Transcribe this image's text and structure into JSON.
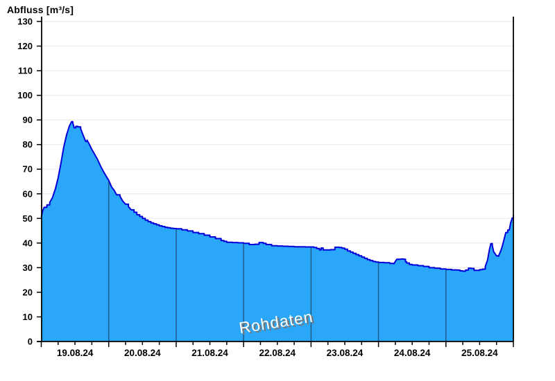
{
  "chart_data": {
    "type": "area",
    "title": "Abfluss [m³/s]",
    "ylabel": "Abfluss [m³/s]",
    "xlabel": "",
    "watermark": "Rohdaten",
    "legend": "none",
    "grid": "horizontal",
    "ylim": [
      0,
      130
    ],
    "y_ticks": [
      0,
      10,
      20,
      30,
      40,
      50,
      60,
      70,
      80,
      90,
      100,
      110,
      120,
      130
    ],
    "x_day_labels": [
      "19.08.24",
      "20.08.24",
      "21.08.24",
      "22.08.24",
      "23.08.24",
      "24.08.24",
      "25.08.24"
    ],
    "x_span_hours": 168,
    "hours_per_day": 24,
    "minor_tick_hours": 6,
    "day_boundary_hours": [
      24,
      48,
      72,
      96,
      120,
      144
    ],
    "series": [
      {
        "name": "Abfluss Rohdaten",
        "unit": "m³/s",
        "points": [
          [
            0,
            50.5
          ],
          [
            0.5,
            53
          ],
          [
            1,
            54.5
          ],
          [
            2,
            55.5
          ],
          [
            3,
            56.5
          ],
          [
            4,
            58.5
          ],
          [
            5,
            62
          ],
          [
            6,
            66.5
          ],
          [
            7,
            72.5
          ],
          [
            8,
            79
          ],
          [
            9,
            84
          ],
          [
            10,
            87.5
          ],
          [
            10.8,
            89.3
          ],
          [
            11.2,
            88.8
          ],
          [
            11.7,
            86.8
          ],
          [
            12.3,
            87.4
          ],
          [
            13,
            87.2
          ],
          [
            14,
            86.5
          ],
          [
            15,
            83.5
          ],
          [
            15.8,
            81.3
          ],
          [
            16.3,
            81.8
          ],
          [
            17,
            80.3
          ],
          [
            18,
            78
          ],
          [
            19,
            76
          ],
          [
            20,
            74
          ],
          [
            21,
            71.5
          ],
          [
            22,
            69.3
          ],
          [
            23,
            67.3
          ],
          [
            24,
            65.5
          ],
          [
            25,
            62.8
          ],
          [
            26,
            61.3
          ],
          [
            26.8,
            59.6
          ],
          [
            28,
            59
          ],
          [
            29,
            57
          ],
          [
            30,
            55.8
          ],
          [
            31,
            54.8
          ],
          [
            32,
            53.5
          ],
          [
            33,
            52.5
          ],
          [
            34,
            51.5
          ],
          [
            35,
            50.8
          ],
          [
            36,
            50
          ],
          [
            37,
            49.3
          ],
          [
            38,
            48.7
          ],
          [
            39,
            48.2
          ],
          [
            40,
            47.8
          ],
          [
            41,
            47.4
          ],
          [
            42,
            47
          ],
          [
            43,
            46.7
          ],
          [
            44,
            46.4
          ],
          [
            45,
            46.2
          ],
          [
            46,
            46
          ],
          [
            47,
            45.9
          ],
          [
            48,
            45.8
          ],
          [
            50,
            45.4
          ],
          [
            52,
            44.9
          ],
          [
            54,
            44.3
          ],
          [
            56,
            43.8
          ],
          [
            58,
            43.2
          ],
          [
            60,
            42.5
          ],
          [
            62,
            41.8
          ],
          [
            64,
            41
          ],
          [
            65,
            40.7
          ],
          [
            66,
            40.3
          ],
          [
            68,
            40.2
          ],
          [
            70,
            40.1
          ],
          [
            72,
            39.9
          ],
          [
            74,
            39.4
          ],
          [
            76,
            39.5
          ],
          [
            77.5,
            40.2
          ],
          [
            79,
            39.9
          ],
          [
            80,
            39.4
          ],
          [
            82,
            38.9
          ],
          [
            84,
            38.8
          ],
          [
            86,
            38.7
          ],
          [
            88,
            38.6
          ],
          [
            90,
            38.5
          ],
          [
            92,
            38.5
          ],
          [
            94,
            38.4
          ],
          [
            96,
            38.4
          ],
          [
            97,
            38.2
          ],
          [
            98,
            37.8
          ],
          [
            99,
            37.2
          ],
          [
            99.6,
            38
          ],
          [
            100.3,
            37.2
          ],
          [
            102,
            37.2
          ],
          [
            103,
            37.3
          ],
          [
            104.5,
            38.3
          ],
          [
            106,
            38.2
          ],
          [
            107,
            37.9
          ],
          [
            108,
            37.5
          ],
          [
            109,
            36.8
          ],
          [
            110,
            36.3
          ],
          [
            111,
            35.8
          ],
          [
            112,
            35.3
          ],
          [
            113,
            34.8
          ],
          [
            114,
            34.3
          ],
          [
            115,
            33.8
          ],
          [
            116,
            33.3
          ],
          [
            117,
            32.9
          ],
          [
            118,
            32.5
          ],
          [
            119,
            32.3
          ],
          [
            120,
            32.1
          ],
          [
            122,
            32
          ],
          [
            124,
            31.7
          ],
          [
            125.5,
            31.6
          ],
          [
            126.5,
            33.4
          ],
          [
            128,
            33.5
          ],
          [
            129,
            33.4
          ],
          [
            129.6,
            32.4
          ],
          [
            130,
            31.9
          ],
          [
            131,
            31.3
          ],
          [
            132,
            31.1
          ],
          [
            134,
            30.8
          ],
          [
            136,
            30.5
          ],
          [
            138,
            30
          ],
          [
            140,
            29.8
          ],
          [
            142,
            29.5
          ],
          [
            144,
            29.3
          ],
          [
            146,
            29.1
          ],
          [
            148,
            29
          ],
          [
            149,
            28.7
          ],
          [
            150,
            28.6
          ],
          [
            151,
            29
          ],
          [
            152,
            29.8
          ],
          [
            153,
            29.7
          ],
          [
            154,
            28.9
          ],
          [
            155,
            28.9
          ],
          [
            156,
            29.2
          ],
          [
            157,
            29.4
          ],
          [
            158,
            30.5
          ],
          [
            158.8,
            33
          ],
          [
            159.5,
            37.5
          ],
          [
            160,
            39.8
          ],
          [
            160.5,
            39
          ],
          [
            161,
            36.5
          ],
          [
            162,
            34.8
          ],
          [
            162.7,
            34.6
          ],
          [
            163.5,
            36.8
          ],
          [
            164,
            38.5
          ],
          [
            164.7,
            41.5
          ],
          [
            165.3,
            44.3
          ],
          [
            166,
            45.3
          ],
          [
            166.6,
            45.6
          ],
          [
            167,
            48
          ],
          [
            167.6,
            50.2
          ],
          [
            168,
            51.3
          ]
        ]
      }
    ],
    "colors": {
      "fill": "#2aa7f8",
      "line": "#0000d8",
      "day_boundary": "#1f6090",
      "gridline": "#ececec",
      "axis": "#000000",
      "watermark_fill": "#ffffff",
      "watermark_shadow": "#777777",
      "text": "#000000"
    }
  }
}
